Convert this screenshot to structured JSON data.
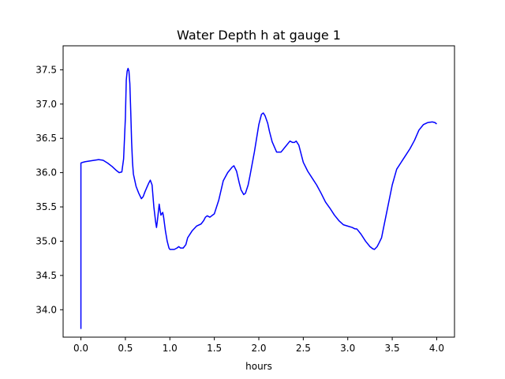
{
  "chart_data": {
    "type": "line",
    "title": "Water Depth h at gauge 1",
    "xlabel": "hours",
    "ylabel": "",
    "xlim": [
      -0.2,
      4.2
    ],
    "ylim": [
      33.6,
      37.85
    ],
    "xticks": [
      0.0,
      0.5,
      1.0,
      1.5,
      2.0,
      2.5,
      3.0,
      3.5,
      4.0
    ],
    "xtick_labels": [
      "0.0",
      "0.5",
      "1.0",
      "1.5",
      "2.0",
      "2.5",
      "3.0",
      "3.5",
      "4.0"
    ],
    "yticks": [
      34.0,
      34.5,
      35.0,
      35.5,
      36.0,
      36.5,
      37.0,
      37.5
    ],
    "ytick_labels": [
      "34.0",
      "34.5",
      "35.0",
      "35.5",
      "36.0",
      "36.5",
      "37.0",
      "37.5"
    ],
    "grid": false,
    "series": [
      {
        "color": "#0000ff",
        "x": [
          0.0,
          0.0,
          0.02,
          0.05,
          0.1,
          0.15,
          0.2,
          0.25,
          0.3,
          0.35,
          0.4,
          0.43,
          0.46,
          0.48,
          0.5,
          0.51,
          0.52,
          0.53,
          0.54,
          0.55,
          0.56,
          0.57,
          0.58,
          0.59,
          0.6,
          0.62,
          0.65,
          0.68,
          0.7,
          0.72,
          0.74,
          0.76,
          0.78,
          0.8,
          0.82,
          0.84,
          0.85,
          0.86,
          0.88,
          0.89,
          0.9,
          0.91,
          0.92,
          0.93,
          0.95,
          0.97,
          0.98,
          0.99,
          1.0,
          1.02,
          1.05,
          1.08,
          1.1,
          1.12,
          1.15,
          1.18,
          1.2,
          1.25,
          1.3,
          1.35,
          1.38,
          1.4,
          1.42,
          1.45,
          1.5,
          1.55,
          1.6,
          1.65,
          1.7,
          1.72,
          1.75,
          1.78,
          1.8,
          1.83,
          1.85,
          1.88,
          1.9,
          1.95,
          2.0,
          2.03,
          2.05,
          2.07,
          2.1,
          2.12,
          2.15,
          2.2,
          2.25,
          2.3,
          2.35,
          2.38,
          2.4,
          2.42,
          2.45,
          2.48,
          2.5,
          2.55,
          2.6,
          2.65,
          2.7,
          2.75,
          2.8,
          2.85,
          2.9,
          2.95,
          3.0,
          3.05,
          3.08,
          3.1,
          3.12,
          3.15,
          3.2,
          3.25,
          3.28,
          3.3,
          3.33,
          3.35,
          3.38,
          3.4,
          3.45,
          3.5,
          3.55,
          3.6,
          3.65,
          3.7,
          3.75,
          3.8,
          3.85,
          3.9,
          3.95,
          3.98,
          4.0
        ],
        "y": [
          33.72,
          36.14,
          36.15,
          36.16,
          36.17,
          36.18,
          36.19,
          36.18,
          36.14,
          36.09,
          36.03,
          36.0,
          36.01,
          36.2,
          36.8,
          37.35,
          37.48,
          37.52,
          37.48,
          37.3,
          36.9,
          36.45,
          36.15,
          35.98,
          35.92,
          35.8,
          35.7,
          35.62,
          35.65,
          35.72,
          35.78,
          35.84,
          35.89,
          35.82,
          35.5,
          35.28,
          35.2,
          35.3,
          35.54,
          35.45,
          35.38,
          35.4,
          35.42,
          35.35,
          35.15,
          35.0,
          34.95,
          34.9,
          34.88,
          34.88,
          34.88,
          34.9,
          34.92,
          34.9,
          34.9,
          34.95,
          35.05,
          35.15,
          35.22,
          35.25,
          35.3,
          35.35,
          35.37,
          35.35,
          35.4,
          35.6,
          35.88,
          36.0,
          36.08,
          36.1,
          36.02,
          35.85,
          35.75,
          35.68,
          35.7,
          35.82,
          35.95,
          36.3,
          36.7,
          36.85,
          36.87,
          36.83,
          36.72,
          36.6,
          36.45,
          36.3,
          36.3,
          36.38,
          36.46,
          36.44,
          36.44,
          36.46,
          36.4,
          36.25,
          36.15,
          36.02,
          35.92,
          35.82,
          35.7,
          35.57,
          35.48,
          35.38,
          35.3,
          35.24,
          35.22,
          35.2,
          35.18,
          35.18,
          35.15,
          35.1,
          35.0,
          34.92,
          34.89,
          34.88,
          34.92,
          34.97,
          35.05,
          35.18,
          35.5,
          35.82,
          36.05,
          36.15,
          36.25,
          36.35,
          36.47,
          36.62,
          36.7,
          36.73,
          36.74,
          36.73,
          36.71
        ]
      }
    ]
  }
}
